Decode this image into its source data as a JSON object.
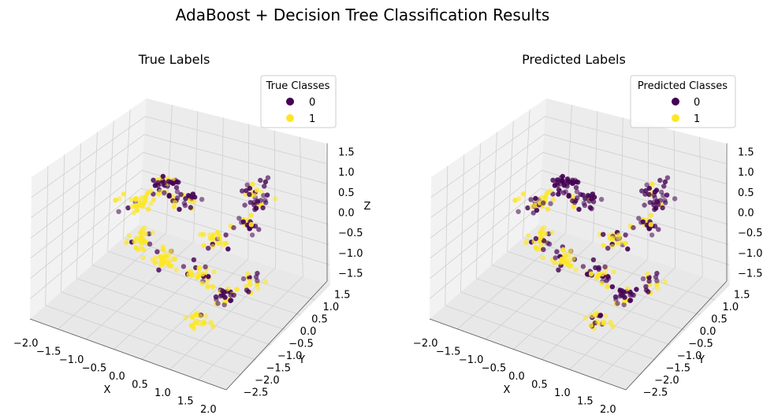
{
  "figure": {
    "title": "AdaBoost + Decision Tree Classification Results"
  },
  "colors": {
    "class_0": "#440154",
    "class_1": "#fde725",
    "pane_x": "#f2f2f2",
    "pane_y": "#e8e8e8",
    "pane_z": "#ececec",
    "grid": "#cfcfcf"
  },
  "chart_data": [
    {
      "type": "scatter",
      "projection": "3d",
      "title": "True Labels",
      "xlabel": "X",
      "ylabel": "Y",
      "zlabel": "Z",
      "xlim": [
        -2.1,
        2.1
      ],
      "ylim": [
        -2.6,
        1.7
      ],
      "zlim": [
        -1.7,
        1.7
      ],
      "xticks": [
        "−2.0",
        "−1.5",
        "−1.0",
        "−0.5",
        "0.0",
        "0.5",
        "1.0",
        "1.5",
        "2.0"
      ],
      "yticks": [
        "−2.5",
        "−2.0",
        "−1.5",
        "−1.0",
        "−0.5",
        "0.0",
        "0.5",
        "1.0",
        "1.5"
      ],
      "zticks": [
        "−1.5",
        "−1.0",
        "−0.5",
        "0.0",
        "0.5",
        "1.0",
        "1.5"
      ],
      "legend": {
        "title": "True Classes",
        "entries": [
          "0",
          "1"
        ],
        "placement": "top-right"
      },
      "series": [
        {
          "name": "0",
          "label_index": 0
        },
        {
          "name": "1",
          "label_index": 1
        }
      ]
    },
    {
      "type": "scatter",
      "projection": "3d",
      "title": "Predicted Labels",
      "xlabel": "X",
      "ylabel": "Y",
      "zlabel": "",
      "xlim": [
        -2.1,
        2.1
      ],
      "ylim": [
        -2.6,
        1.7
      ],
      "zlim": [
        -1.7,
        1.7
      ],
      "xticks": [
        "−2.0",
        "−1.5",
        "−1.0",
        "−0.5",
        "0.0",
        "0.5",
        "1.0",
        "1.5",
        "2.0"
      ],
      "yticks": [
        "−2.5",
        "−2.0",
        "−1.5",
        "−1.0",
        "−0.5",
        "0.0",
        "0.5",
        "1.0",
        "1.5"
      ],
      "zticks": [
        "−1.5",
        "−1.0",
        "−0.5",
        "0.0",
        "0.5",
        "1.0",
        "1.5"
      ],
      "legend": {
        "title": "Predicted Classes",
        "entries": [
          "0",
          "1"
        ],
        "placement": "top-right"
      },
      "series": [
        {
          "name": "0",
          "label_index": 0
        },
        {
          "name": "1",
          "label_index": 1
        }
      ]
    }
  ]
}
